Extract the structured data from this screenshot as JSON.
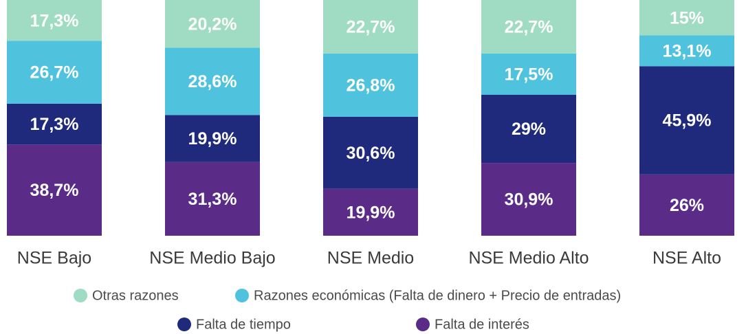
{
  "chart_data": {
    "type": "stacked_bar",
    "categories": [
      "NSE Bajo",
      "NSE Medio Bajo",
      "NSE Medio",
      "NSE Medio Alto",
      "NSE Alto"
    ],
    "series": [
      {
        "name": "Otras razones",
        "color": "#9fdcc3",
        "values": [
          17.3,
          20.2,
          22.7,
          22.7,
          15
        ],
        "value_labels": [
          "17,3%",
          "20,2%",
          "22,7%",
          "22,7%",
          "15%"
        ]
      },
      {
        "name": "Razones económicas (Falta de dinero + Precio de entradas)",
        "color": "#4fc3de",
        "values": [
          26.7,
          28.6,
          26.8,
          17.5,
          13.1
        ],
        "value_labels": [
          "26,7%",
          "28,6%",
          "26,8%",
          "17,5%",
          "13,1%"
        ]
      },
      {
        "name": "Falta de tiempo",
        "color": "#1f2a7c",
        "values": [
          17.3,
          19.9,
          30.6,
          29,
          45.9
        ],
        "value_labels": [
          "17,3%",
          "19,9%",
          "30,6%",
          "29%",
          "45,9%"
        ]
      },
      {
        "name": "Falta de interés",
        "color": "#5a2b87",
        "values": [
          38.7,
          31.3,
          19.9,
          30.9,
          26
        ],
        "value_labels": [
          "38,7%",
          "31,3%",
          "19,9%",
          "30,9%",
          "26%"
        ]
      }
    ]
  }
}
